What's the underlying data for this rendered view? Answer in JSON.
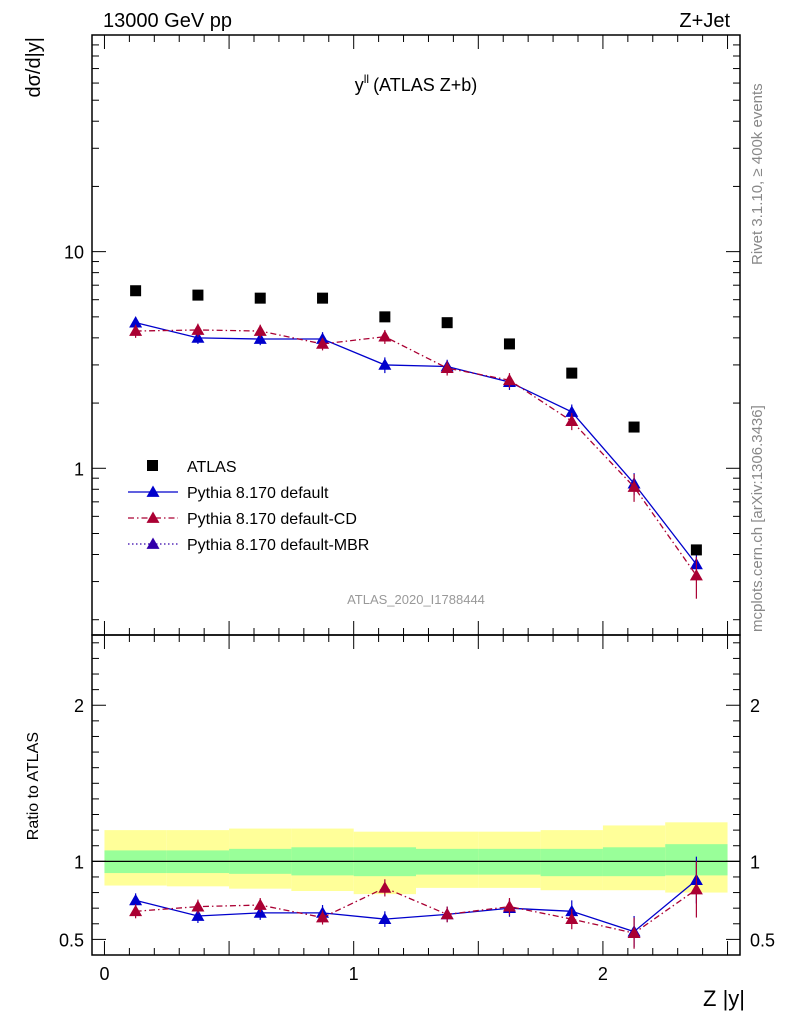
{
  "header": {
    "left": "13000 GeV pp",
    "right": "Z+Jet"
  },
  "side": {
    "rivet": "Rivet 3.1.10, ≥ 400k events",
    "mcplots": "mcplots.cern.ch [arXiv:1306.3436]"
  },
  "colors": {
    "atlas": "#000000",
    "default": "#0000cc",
    "cd": "#aa0033",
    "mbr": "#3300aa",
    "band_inner": "#99ff99",
    "band_outer": "#ffff99"
  },
  "chart_data": [
    {
      "type": "scatter",
      "title": "y^ll (ATLAS Z+b)",
      "title_main": "y",
      "title_sup": "ll",
      "title_rest": "(ATLAS Z+b)",
      "ylabel": "dσ/d|y|",
      "yscale": "log",
      "ylim": [
        0.17,
        100
      ],
      "ytick_labels": [
        {
          "value": 1,
          "label": "1"
        },
        {
          "value": 10,
          "label": "10"
        }
      ],
      "watermark": "ATLAS_2020_I1788444",
      "x": [
        0.125,
        0.375,
        0.625,
        0.875,
        1.125,
        1.375,
        1.625,
        1.875,
        2.125,
        2.375
      ],
      "series": [
        {
          "name": "ATLAS",
          "key": "atlas",
          "marker": "square",
          "values": [
            6.6,
            6.3,
            6.1,
            6.1,
            5.0,
            4.7,
            3.75,
            2.75,
            1.55,
            0.42
          ]
        },
        {
          "name": "Pythia 8.170 default",
          "key": "default",
          "marker": "triangle",
          "line": "solid",
          "values": [
            4.7,
            4.0,
            3.95,
            3.95,
            3.0,
            2.95,
            2.5,
            1.82,
            0.85,
            0.36
          ],
          "errors": [
            0.3,
            0.25,
            0.25,
            0.3,
            0.25,
            0.22,
            0.2,
            0.15,
            0.1,
            0.05
          ]
        },
        {
          "name": "Pythia 8.170 default-CD",
          "key": "cd",
          "marker": "triangle",
          "line": "dashdot",
          "values": [
            4.3,
            4.35,
            4.3,
            3.75,
            4.05,
            2.9,
            2.55,
            1.65,
            0.82,
            0.32
          ],
          "errors": [
            0.3,
            0.3,
            0.3,
            0.25,
            0.3,
            0.22,
            0.2,
            0.15,
            0.12,
            0.07
          ]
        },
        {
          "name": "Pythia 8.170 default-MBR",
          "key": "mbr",
          "marker": "triangle",
          "line": "dotted",
          "values": [],
          "errors": []
        }
      ]
    },
    {
      "type": "scatter",
      "xlabel": "Z |y|",
      "ylabel": "Ratio to ATLAS",
      "ylim": [
        0.4,
        2.45
      ],
      "xlim": [
        -0.05,
        2.55
      ],
      "xtick_labels": [
        {
          "value": 0,
          "label": "0"
        },
        {
          "value": 1,
          "label": "1"
        },
        {
          "value": 2,
          "label": "2"
        }
      ],
      "ytick_labels": [
        {
          "value": 0.5,
          "label": "0.5"
        },
        {
          "value": 1,
          "label": "1"
        },
        {
          "value": 2,
          "label": "2"
        }
      ],
      "band_edges": [
        0,
        0.25,
        0.5,
        0.75,
        1.0,
        1.25,
        1.5,
        1.75,
        2.0,
        2.25,
        2.5
      ],
      "band_inner": [
        [
          0.925,
          1.07
        ],
        [
          0.925,
          1.07
        ],
        [
          0.92,
          1.08
        ],
        [
          0.91,
          1.09
        ],
        [
          0.905,
          1.09
        ],
        [
          0.915,
          1.08
        ],
        [
          0.915,
          1.08
        ],
        [
          0.905,
          1.08
        ],
        [
          0.905,
          1.09
        ],
        [
          0.91,
          1.11
        ]
      ],
      "band_outer": [
        [
          0.845,
          1.2
        ],
        [
          0.84,
          1.2
        ],
        [
          0.825,
          1.21
        ],
        [
          0.81,
          1.21
        ],
        [
          0.79,
          1.19
        ],
        [
          0.83,
          1.19
        ],
        [
          0.83,
          1.19
        ],
        [
          0.815,
          1.2
        ],
        [
          0.815,
          1.23
        ],
        [
          0.8,
          1.25
        ]
      ],
      "series": [
        {
          "name": "Pythia 8.170 default",
          "key": "default",
          "line": "solid",
          "values": [
            0.75,
            0.65,
            0.67,
            0.67,
            0.63,
            0.66,
            0.7,
            0.68,
            0.55,
            0.88
          ],
          "errors": [
            0.045,
            0.045,
            0.045,
            0.05,
            0.05,
            0.05,
            0.055,
            0.07,
            0.1,
            0.15
          ]
        },
        {
          "name": "Pythia 8.170 default-CD",
          "key": "cd",
          "line": "dashdot",
          "values": [
            0.68,
            0.71,
            0.72,
            0.64,
            0.83,
            0.66,
            0.71,
            0.63,
            0.54,
            0.82
          ],
          "errors": [
            0.045,
            0.045,
            0.045,
            0.045,
            0.055,
            0.05,
            0.055,
            0.065,
            0.1,
            0.18
          ]
        }
      ]
    }
  ]
}
